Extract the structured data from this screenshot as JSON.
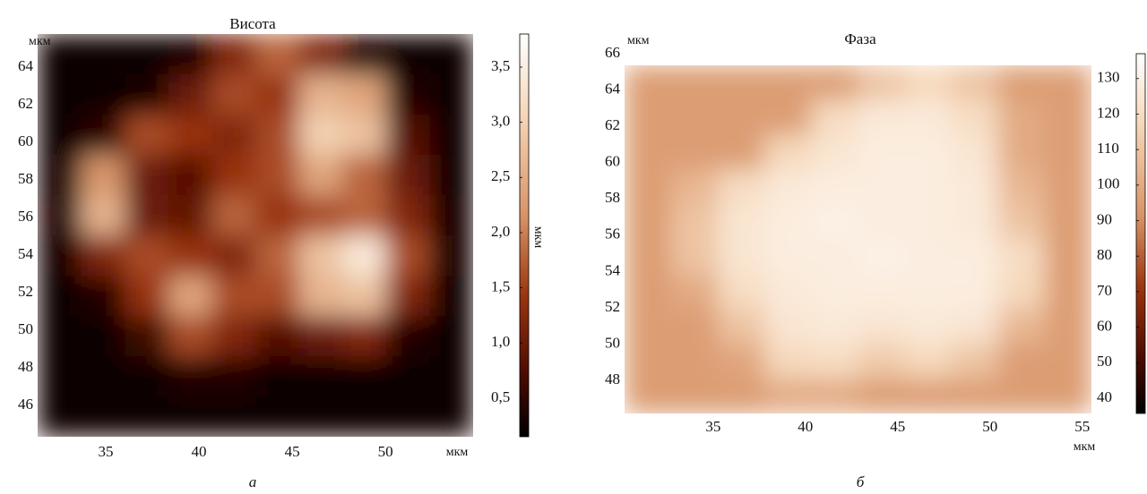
{
  "chart_data": [
    {
      "type": "heatmap",
      "title": "Висота",
      "caption": "а",
      "x_unit": "мкм",
      "y_unit": "мкм",
      "colorbar_label": "мкм",
      "xlim": [
        31.35,
        54.7
      ],
      "ylim": [
        44.33,
        65.76
      ],
      "xticks": [
        35,
        40,
        45,
        50
      ],
      "yticks": [
        46,
        48,
        50,
        52,
        54,
        56,
        58,
        60,
        62,
        64
      ],
      "zlim": [
        0.15,
        3.8
      ],
      "zticks": [
        {
          "value": 0.5,
          "label": "0,5"
        },
        {
          "value": 1.0,
          "label": "1,0"
        },
        {
          "value": 1.5,
          "label": "1,5"
        },
        {
          "value": 2.0,
          "label": "2,0"
        },
        {
          "value": 2.5,
          "label": "2,5"
        },
        {
          "value": 3.0,
          "label": "3,0"
        },
        {
          "value": 3.5,
          "label": "3,5"
        }
      ],
      "values": [
        [
          0.2,
          0.2,
          0.2,
          0.3,
          1.2,
          1.8,
          1.2,
          0.4,
          0.2,
          0.2
        ],
        [
          0.2,
          0.2,
          0.3,
          1.0,
          1.6,
          1.4,
          2.6,
          2.4,
          0.4,
          0.2
        ],
        [
          0.2,
          0.5,
          1.6,
          1.4,
          1.2,
          1.6,
          3.0,
          2.8,
          0.8,
          0.2
        ],
        [
          0.3,
          2.2,
          1.0,
          0.8,
          1.4,
          1.6,
          2.4,
          1.8,
          1.0,
          0.2
        ],
        [
          0.4,
          2.6,
          1.0,
          0.9,
          1.8,
          1.4,
          1.6,
          1.8,
          1.2,
          0.3
        ],
        [
          0.3,
          1.2,
          1.6,
          1.4,
          1.2,
          1.8,
          2.8,
          3.4,
          1.6,
          0.3
        ],
        [
          0.2,
          0.4,
          1.4,
          2.4,
          1.6,
          1.6,
          2.6,
          2.8,
          1.2,
          0.2
        ],
        [
          0.2,
          0.2,
          0.6,
          1.6,
          1.2,
          0.8,
          1.0,
          1.2,
          0.4,
          0.2
        ],
        [
          0.2,
          0.2,
          0.2,
          0.4,
          0.4,
          0.2,
          0.2,
          0.2,
          0.2,
          0.2
        ],
        [
          0.2,
          0.2,
          0.2,
          0.2,
          0.2,
          0.2,
          0.2,
          0.2,
          0.2,
          0.2
        ]
      ]
    },
    {
      "type": "heatmap",
      "title": "Фаза",
      "caption": "б",
      "x_unit": "мкм",
      "y_unit": "мкм",
      "xlim": [
        30.2,
        55.5
      ],
      "ylim": [
        46.18,
        65.36
      ],
      "xticks": [
        35,
        40,
        45,
        50,
        55
      ],
      "yticks": [
        48,
        50,
        52,
        54,
        56,
        58,
        60,
        62,
        64,
        66
      ],
      "zlim": [
        35.7,
        137
      ],
      "zticks": [
        40,
        50,
        60,
        70,
        80,
        90,
        100,
        110,
        120,
        130
      ],
      "values": [
        [
          95,
          95,
          95,
          95,
          95,
          110,
          118,
          110,
          95,
          95
        ],
        [
          95,
          95,
          95,
          95,
          120,
          126,
          126,
          120,
          100,
          95
        ],
        [
          95,
          95,
          95,
          118,
          124,
          128,
          128,
          124,
          100,
          95
        ],
        [
          95,
          105,
          120,
          126,
          128,
          128,
          128,
          126,
          105,
          95
        ],
        [
          95,
          110,
          124,
          128,
          130,
          128,
          128,
          126,
          110,
          95
        ],
        [
          95,
          110,
          124,
          128,
          128,
          130,
          128,
          128,
          120,
          95
        ],
        [
          95,
          100,
          120,
          126,
          128,
          128,
          128,
          128,
          118,
          95
        ],
        [
          95,
          95,
          110,
          124,
          126,
          124,
          126,
          124,
          105,
          95
        ],
        [
          95,
          95,
          98,
          118,
          120,
          112,
          118,
          110,
          95,
          95
        ],
        [
          95,
          95,
          95,
          100,
          100,
          95,
          95,
          95,
          95,
          95
        ]
      ]
    }
  ]
}
